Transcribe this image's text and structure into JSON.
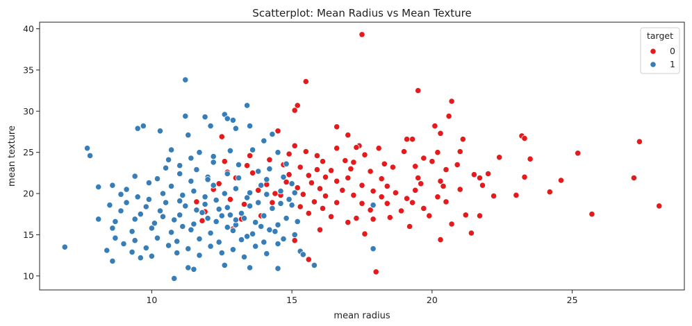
{
  "chart_data": {
    "type": "scatter",
    "title": "Scatterplot: Mean Radius vs Mean Texture",
    "xlabel": "mean radius",
    "ylabel": "mean texture",
    "xlim": [
      6.0,
      29.0
    ],
    "ylim": [
      8.3,
      40.8
    ],
    "xticks": [
      10,
      15,
      20,
      25
    ],
    "yticks": [
      10,
      15,
      20,
      25,
      30,
      35,
      40
    ],
    "grid": false,
    "legend": {
      "title": "target",
      "placement": "top-right"
    },
    "series": [
      {
        "name": "0",
        "color": "#e41a1c",
        "points": [
          [
            17.5,
            39.3
          ],
          [
            15.5,
            33.6
          ],
          [
            19.5,
            32.5
          ],
          [
            20.7,
            31.2
          ],
          [
            15.2,
            30.7
          ],
          [
            15.1,
            30.1
          ],
          [
            16.6,
            28.1
          ],
          [
            20.6,
            29.4
          ],
          [
            14.5,
            27.6
          ],
          [
            12.5,
            26.9
          ],
          [
            17.0,
            27.1
          ],
          [
            27.4,
            26.3
          ],
          [
            23.2,
            27.0
          ],
          [
            19.1,
            26.6
          ],
          [
            21.1,
            26.6
          ],
          [
            23.3,
            26.7
          ],
          [
            17.4,
            25.8
          ],
          [
            18.1,
            25.5
          ],
          [
            20.1,
            28.2
          ],
          [
            20.3,
            27.3
          ],
          [
            19.3,
            26.6
          ],
          [
            15.1,
            25.8
          ],
          [
            15.5,
            25.1
          ],
          [
            16.6,
            25.5
          ],
          [
            17.3,
            25.6
          ],
          [
            19.0,
            25.1
          ],
          [
            20.2,
            25.0
          ],
          [
            21.0,
            25.1
          ],
          [
            25.2,
            24.9
          ],
          [
            14.9,
            24.8
          ],
          [
            15.9,
            24.6
          ],
          [
            17.6,
            24.7
          ],
          [
            19.7,
            24.3
          ],
          [
            22.4,
            24.4
          ],
          [
            16.1,
            23.9
          ],
          [
            16.9,
            24.0
          ],
          [
            17.2,
            23.8
          ],
          [
            18.3,
            23.6
          ],
          [
            20.0,
            23.9
          ],
          [
            20.9,
            23.5
          ],
          [
            23.5,
            24.2
          ],
          [
            14.7,
            23.5
          ],
          [
            15.3,
            23.2
          ],
          [
            15.9,
            22.9
          ],
          [
            16.4,
            22.8
          ],
          [
            17.1,
            23.0
          ],
          [
            17.8,
            22.7
          ],
          [
            18.6,
            23.2
          ],
          [
            19.4,
            23.3
          ],
          [
            20.5,
            22.9
          ],
          [
            21.5,
            22.3
          ],
          [
            22.0,
            22.4
          ],
          [
            23.3,
            22.0
          ],
          [
            15.6,
            22.2
          ],
          [
            16.2,
            22.0
          ],
          [
            17.0,
            21.9
          ],
          [
            18.2,
            21.8
          ],
          [
            19.5,
            21.9
          ],
          [
            20.3,
            21.5
          ],
          [
            21.7,
            21.9
          ],
          [
            24.6,
            21.6
          ],
          [
            27.2,
            21.9
          ],
          [
            14.8,
            21.4
          ],
          [
            15.7,
            21.3
          ],
          [
            16.6,
            21.5
          ],
          [
            17.5,
            21.0
          ],
          [
            18.4,
            20.9
          ],
          [
            19.6,
            21.2
          ],
          [
            20.4,
            20.9
          ],
          [
            21.8,
            21.0
          ],
          [
            15.2,
            20.7
          ],
          [
            16.0,
            20.6
          ],
          [
            16.8,
            20.4
          ],
          [
            17.9,
            20.3
          ],
          [
            18.7,
            20.1
          ],
          [
            19.4,
            20.4
          ],
          [
            21.0,
            20.5
          ],
          [
            24.2,
            20.2
          ],
          [
            15.4,
            19.9
          ],
          [
            16.2,
            19.7
          ],
          [
            17.2,
            19.8
          ],
          [
            18.2,
            19.6
          ],
          [
            19.1,
            19.4
          ],
          [
            20.2,
            19.6
          ],
          [
            22.2,
            19.7
          ],
          [
            23.0,
            19.8
          ],
          [
            15.8,
            19.0
          ],
          [
            16.6,
            18.9
          ],
          [
            17.5,
            18.8
          ],
          [
            18.4,
            18.8
          ],
          [
            19.3,
            18.9
          ],
          [
            20.5,
            19.0
          ],
          [
            28.1,
            18.5
          ],
          [
            15.3,
            18.4
          ],
          [
            16.1,
            18.2
          ],
          [
            17.8,
            18.0
          ],
          [
            18.9,
            17.9
          ],
          [
            19.7,
            18.2
          ],
          [
            21.2,
            17.4
          ],
          [
            25.7,
            17.5
          ],
          [
            15.6,
            17.6
          ],
          [
            16.4,
            17.2
          ],
          [
            17.3,
            17.0
          ],
          [
            18.5,
            17.1
          ],
          [
            19.9,
            17.3
          ],
          [
            21.7,
            17.3
          ],
          [
            17.0,
            16.5
          ],
          [
            17.9,
            16.9
          ],
          [
            19.2,
            16.0
          ],
          [
            20.7,
            16.3
          ],
          [
            16.0,
            15.6
          ],
          [
            17.6,
            15.1
          ],
          [
            21.4,
            15.2
          ],
          [
            20.3,
            14.4
          ],
          [
            15.1,
            14.3
          ],
          [
            15.6,
            12.0
          ],
          [
            18.0,
            10.5
          ],
          [
            12.2,
            20.5
          ],
          [
            13.0,
            21.9
          ],
          [
            13.6,
            22.5
          ],
          [
            14.1,
            21.1
          ],
          [
            14.6,
            19.8
          ],
          [
            12.8,
            19.3
          ],
          [
            13.3,
            18.7
          ],
          [
            14.3,
            18.9
          ],
          [
            12.6,
            23.9
          ],
          [
            13.4,
            23.4
          ],
          [
            14.2,
            24.1
          ],
          [
            11.6,
            19.0
          ],
          [
            11.9,
            17.8
          ],
          [
            13.9,
            17.3
          ],
          [
            12.7,
            22.6
          ],
          [
            14.9,
            22.3
          ],
          [
            13.8,
            20.4
          ],
          [
            12.4,
            21.2
          ],
          [
            14.4,
            20.0
          ],
          [
            13.2,
            16.9
          ],
          [
            12.9,
            15.7
          ],
          [
            11.8,
            16.7
          ],
          [
            13.5,
            24.6
          ]
        ]
      },
      {
        "name": "1",
        "color": "#377eb8",
        "points": [
          [
            11.2,
            33.8
          ],
          [
            13.4,
            30.7
          ],
          [
            12.6,
            29.6
          ],
          [
            11.2,
            29.4
          ],
          [
            12.7,
            29.1
          ],
          [
            11.9,
            29.3
          ],
          [
            12.9,
            28.9
          ],
          [
            12.1,
            28.2
          ],
          [
            13.5,
            28.2
          ],
          [
            9.7,
            28.2
          ],
          [
            9.5,
            27.9
          ],
          [
            10.3,
            27.6
          ],
          [
            11.3,
            27.1
          ],
          [
            13.0,
            27.9
          ],
          [
            14.3,
            27.2
          ],
          [
            14.0,
            26.4
          ],
          [
            7.7,
            25.5
          ],
          [
            7.8,
            24.6
          ],
          [
            11.7,
            25.0
          ],
          [
            10.7,
            25.3
          ],
          [
            13.6,
            25.3
          ],
          [
            12.8,
            25.2
          ],
          [
            12.2,
            24.5
          ],
          [
            14.5,
            25.0
          ],
          [
            11.4,
            24.3
          ],
          [
            11.0,
            23.4
          ],
          [
            10.6,
            24.1
          ],
          [
            12.2,
            23.8
          ],
          [
            13.1,
            23.5
          ],
          [
            14.2,
            23.0
          ],
          [
            14.8,
            23.6
          ],
          [
            10.5,
            23.1
          ],
          [
            11.6,
            22.9
          ],
          [
            12.7,
            22.4
          ],
          [
            13.8,
            22.7
          ],
          [
            14.7,
            22.0
          ],
          [
            9.4,
            22.1
          ],
          [
            10.2,
            21.8
          ],
          [
            11.0,
            22.4
          ],
          [
            12.0,
            22.0
          ],
          [
            13.1,
            21.9
          ],
          [
            14.1,
            21.7
          ],
          [
            15.0,
            21.2
          ],
          [
            8.1,
            20.8
          ],
          [
            8.6,
            21.0
          ],
          [
            9.1,
            20.5
          ],
          [
            9.9,
            21.3
          ],
          [
            10.7,
            20.9
          ],
          [
            11.4,
            21.5
          ],
          [
            12.2,
            21.0
          ],
          [
            13.0,
            20.6
          ],
          [
            13.9,
            21.0
          ],
          [
            14.6,
            20.3
          ],
          [
            15.1,
            20.1
          ],
          [
            8.9,
            19.9
          ],
          [
            9.5,
            19.6
          ],
          [
            10.4,
            20.0
          ],
          [
            11.1,
            19.8
          ],
          [
            11.9,
            19.6
          ],
          [
            12.6,
            20.0
          ],
          [
            13.4,
            19.5
          ],
          [
            14.1,
            19.9
          ],
          [
            14.9,
            19.3
          ],
          [
            8.5,
            18.6
          ],
          [
            9.1,
            18.9
          ],
          [
            9.8,
            18.4
          ],
          [
            10.5,
            18.9
          ],
          [
            11.2,
            18.5
          ],
          [
            11.9,
            18.7
          ],
          [
            12.7,
            18.3
          ],
          [
            13.5,
            18.5
          ],
          [
            14.3,
            18.2
          ],
          [
            15.0,
            18.6
          ],
          [
            17.9,
            18.6
          ],
          [
            8.9,
            17.9
          ],
          [
            9.6,
            17.5
          ],
          [
            10.3,
            17.9
          ],
          [
            11.0,
            17.4
          ],
          [
            11.8,
            17.7
          ],
          [
            12.5,
            17.3
          ],
          [
            13.2,
            17.6
          ],
          [
            14.0,
            17.3
          ],
          [
            14.8,
            17.0
          ],
          [
            8.1,
            16.9
          ],
          [
            8.7,
            16.6
          ],
          [
            9.4,
            16.9
          ],
          [
            10.1,
            16.4
          ],
          [
            10.8,
            16.8
          ],
          [
            11.5,
            16.3
          ],
          [
            12.3,
            16.6
          ],
          [
            13.0,
            16.2
          ],
          [
            13.7,
            16.5
          ],
          [
            14.5,
            16.2
          ],
          [
            15.2,
            16.6
          ],
          [
            8.6,
            15.8
          ],
          [
            9.3,
            15.4
          ],
          [
            10.0,
            15.8
          ],
          [
            10.7,
            15.3
          ],
          [
            11.4,
            15.6
          ],
          [
            12.1,
            15.2
          ],
          [
            12.9,
            15.5
          ],
          [
            13.6,
            15.1
          ],
          [
            14.4,
            15.4
          ],
          [
            15.1,
            15.0
          ],
          [
            8.7,
            14.6
          ],
          [
            9.4,
            14.3
          ],
          [
            10.2,
            14.6
          ],
          [
            10.9,
            14.2
          ],
          [
            11.7,
            14.5
          ],
          [
            12.4,
            14.1
          ],
          [
            13.2,
            14.4
          ],
          [
            14.0,
            14.1
          ],
          [
            14.7,
            14.5
          ],
          [
            6.9,
            13.5
          ],
          [
            9.0,
            13.9
          ],
          [
            9.8,
            13.4
          ],
          [
            10.6,
            13.7
          ],
          [
            11.3,
            13.3
          ],
          [
            12.1,
            13.6
          ],
          [
            12.9,
            13.2
          ],
          [
            13.7,
            13.6
          ],
          [
            14.5,
            13.9
          ],
          [
            15.3,
            13.0
          ],
          [
            8.4,
            13.1
          ],
          [
            9.3,
            12.9
          ],
          [
            10.0,
            12.4
          ],
          [
            10.9,
            12.8
          ],
          [
            11.7,
            12.5
          ],
          [
            12.5,
            12.8
          ],
          [
            13.3,
            12.3
          ],
          [
            14.1,
            12.7
          ],
          [
            15.4,
            12.6
          ],
          [
            17.9,
            13.3
          ],
          [
            8.6,
            11.8
          ],
          [
            9.6,
            12.2
          ],
          [
            11.3,
            11.0
          ],
          [
            12.6,
            11.3
          ],
          [
            13.5,
            11.0
          ],
          [
            14.5,
            10.9
          ],
          [
            15.8,
            11.3
          ],
          [
            11.5,
            10.8
          ],
          [
            10.8,
            9.7
          ],
          [
            12.0,
            17.0
          ],
          [
            11.6,
            18.0
          ],
          [
            13.8,
            18.9
          ],
          [
            12.3,
            19.2
          ],
          [
            13.3,
            17.0
          ],
          [
            14.6,
            18.8
          ],
          [
            11.1,
            16.0
          ],
          [
            12.7,
            15.9
          ],
          [
            13.4,
            14.8
          ],
          [
            10.4,
            17.2
          ],
          [
            9.9,
            19.3
          ],
          [
            11.5,
            20.3
          ],
          [
            12.4,
            18.1
          ],
          [
            13.9,
            16.0
          ],
          [
            12.0,
            21.7
          ],
          [
            13.5,
            20.1
          ],
          [
            14.2,
            15.6
          ],
          [
            11.0,
            19.1
          ],
          [
            12.8,
            17.4
          ],
          [
            13.0,
            16.8
          ]
        ]
      }
    ]
  }
}
